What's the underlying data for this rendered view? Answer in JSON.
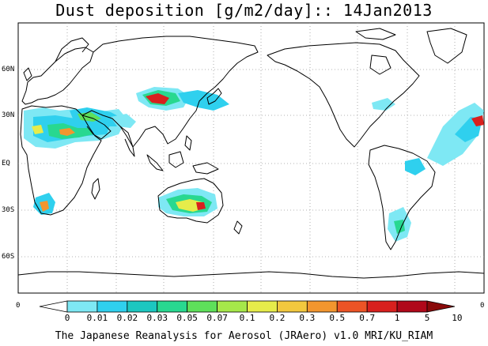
{
  "title": "Dust deposition [g/m2/day]:: 14Jan2013",
  "lat_labels": [
    "60N",
    "30N",
    "EQ",
    "30S",
    "60S"
  ],
  "edge_labels": {
    "left": "0",
    "right": "0"
  },
  "colorbar": {
    "ticks": [
      "0",
      "0.01",
      "0.02",
      "0.03",
      "0.05",
      "0.07",
      "0.1",
      "0.2",
      "0.3",
      "0.5",
      "0.7",
      "1",
      "5",
      "10"
    ],
    "colors": [
      "#ffffff",
      "#7ee8f4",
      "#2fd0ee",
      "#1cc7c0",
      "#28d890",
      "#5ee05a",
      "#a6e84a",
      "#e6ec4a",
      "#f2c83e",
      "#f2962e",
      "#ec5426",
      "#d8201e",
      "#b0081a",
      "#8a0a0a"
    ]
  },
  "dust_colors": [
    "#7ee8f4",
    "#2fd0ee",
    "#1cc7c0",
    "#28d890",
    "#5ee05a",
    "#e6ec4a",
    "#f2962e",
    "#d8201e"
  ],
  "footer": "The Japanese Reanalysis for Aerosol (JRAero) v1.0 MRI/KU_RIAM"
}
